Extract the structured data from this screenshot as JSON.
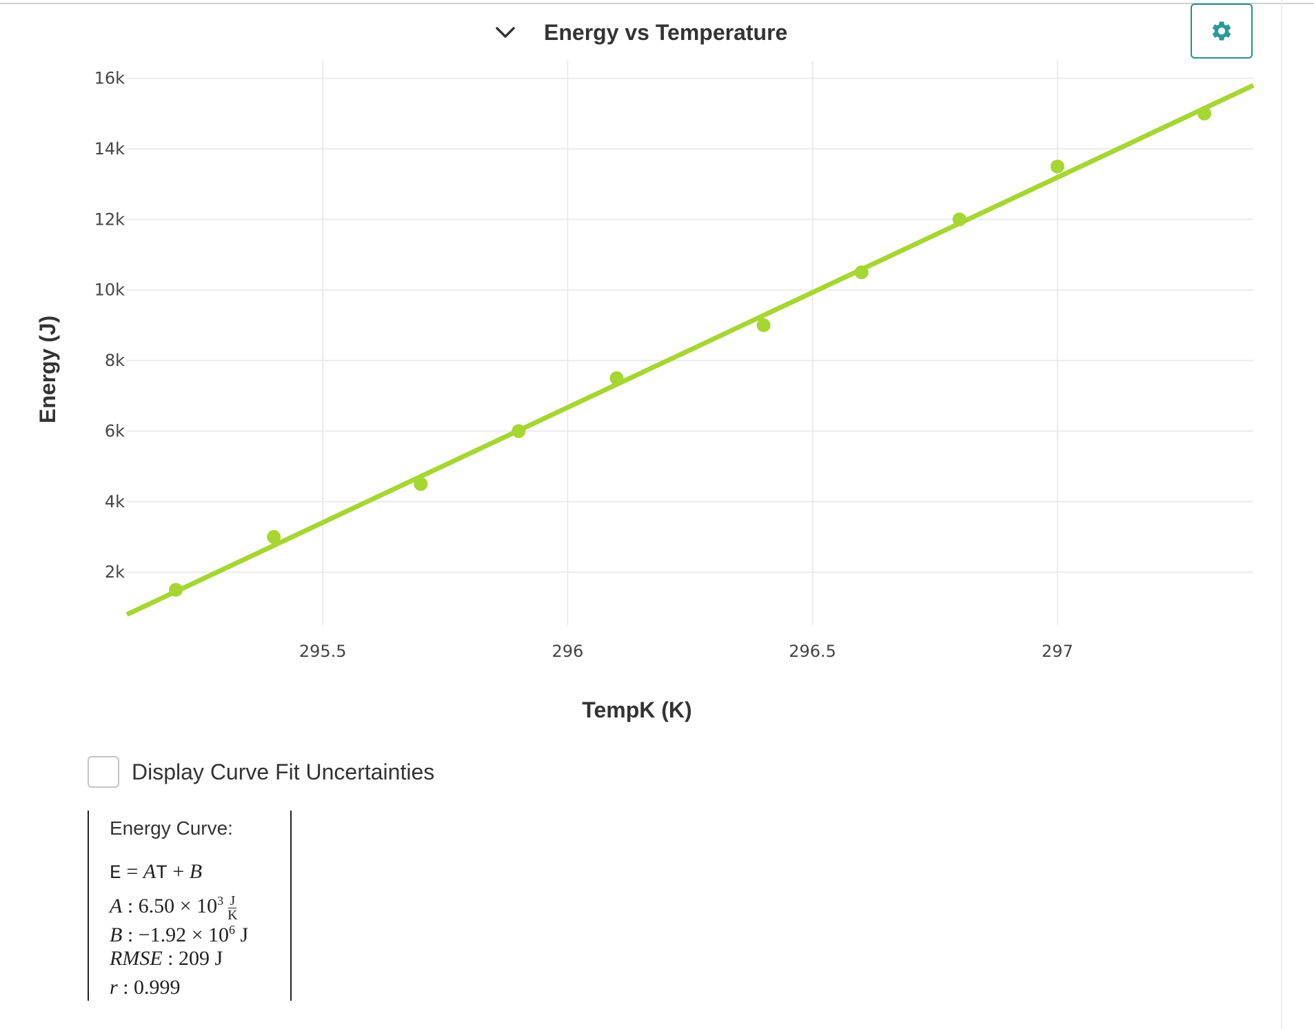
{
  "header": {
    "title": "Energy vs Temperature",
    "collapse_icon": "chevron-down-icon",
    "settings_icon": "gear-icon",
    "accent_color": "#2a8c8c"
  },
  "chart_data": {
    "type": "scatter",
    "title": "Energy vs Temperature",
    "xlabel": "TempK (K)",
    "ylabel": "Energy (J)",
    "xlim": [
      295.1,
      297.4
    ],
    "ylim": [
      0.5,
      16.5
    ],
    "y_unit_scale": 1000,
    "x_ticks": [
      295.5,
      296,
      296.5,
      297
    ],
    "x_tick_labels": [
      "295.5",
      "296",
      "296.5",
      "297"
    ],
    "y_ticks": [
      2,
      4,
      6,
      8,
      10,
      12,
      14,
      16
    ],
    "y_tick_labels": [
      "2k",
      "4k",
      "6k",
      "8k",
      "10k",
      "12k",
      "14k",
      "16k"
    ],
    "grid": true,
    "legend": "none",
    "marker_color": "#a6d631",
    "series": [
      {
        "x": [
          295.2,
          295.4,
          295.7,
          295.9,
          296.1,
          296.4,
          296.6,
          296.8,
          297.0,
          297.3
        ],
        "y": [
          1.5,
          3.0,
          4.5,
          6.0,
          7.5,
          9.0,
          10.5,
          12.0,
          13.5,
          15.0
        ]
      }
    ],
    "fit_line": {
      "x": [
        295.1,
        297.4
      ],
      "y": [
        0.8,
        15.8
      ]
    }
  },
  "controls": {
    "uncertainty_label": "Display Curve Fit Uncertainties",
    "uncertainty_checked": false
  },
  "fit_results": {
    "heading": "Energy Curve:",
    "equation_lhs": "E",
    "equation_rhs_a": "A",
    "equation_rhs_t": "T",
    "equation_rhs_b": "B",
    "a_label": "A",
    "a_mantissa": "6.50",
    "a_exponent": "3",
    "a_unit_num": "J",
    "a_unit_den": "K",
    "b_label": "B",
    "b_mantissa": "−1.92",
    "b_exponent": "6",
    "b_unit": "J",
    "rmse_label": "RMSE",
    "rmse_value": "209",
    "rmse_unit": "J",
    "r_label": "r",
    "r_value": "0.999"
  }
}
